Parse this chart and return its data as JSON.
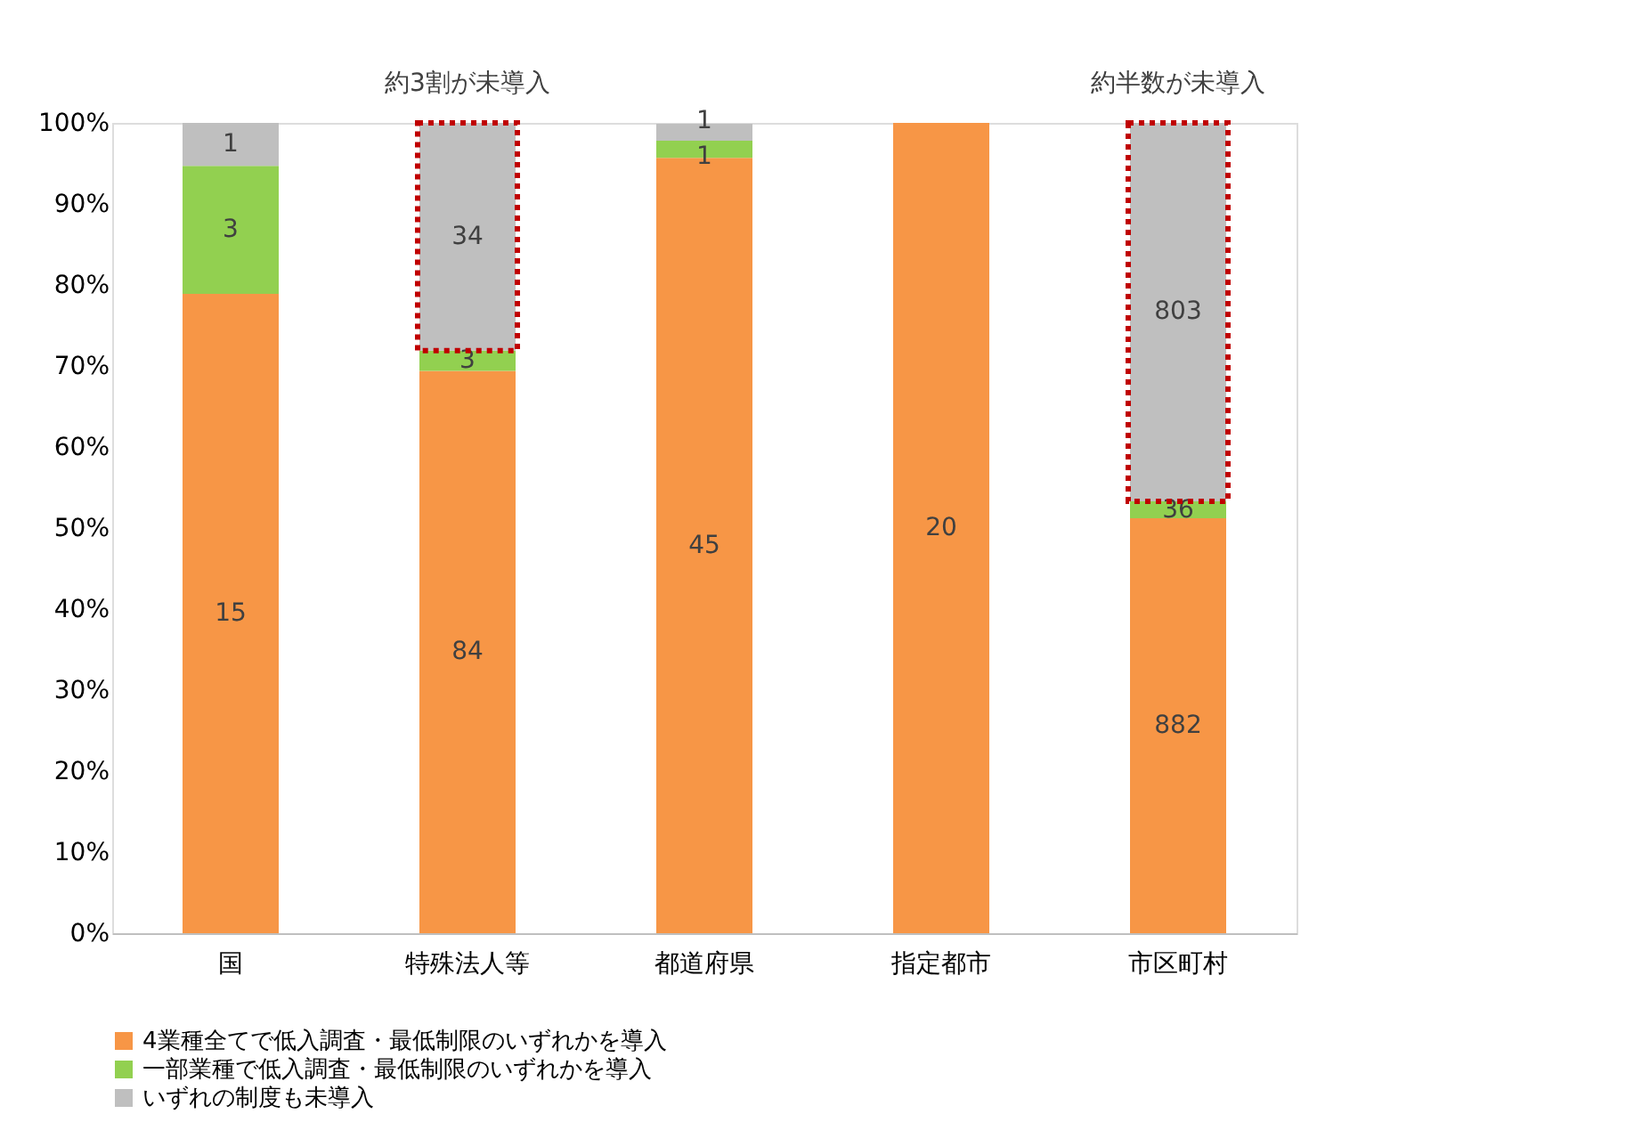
{
  "chart_data": {
    "type": "bar",
    "stacked": true,
    "categories": [
      "国",
      "特殊法人等",
      "都道府県",
      "指定都市",
      "市区町村"
    ],
    "series": [
      {
        "name": "4業種全てで低入調査・最低制限のいずれかを導入",
        "color": "#f79646",
        "values": [
          78.9,
          69.4,
          95.7,
          100,
          51.2
        ]
      },
      {
        "name": "一部業種で低入調査・最低制限のいずれかを導入",
        "color": "#92d050",
        "values": [
          15.8,
          2.5,
          2.1,
          0,
          2.1
        ]
      },
      {
        "name": "いずれの制度も未導入",
        "color": "#bfbfbf",
        "values": [
          5.3,
          28.1,
          2.1,
          0,
          46.7
        ]
      }
    ],
    "ylim": [
      0,
      100
    ],
    "yticks": [
      {
        "value": 0,
        "label": "0%"
      },
      {
        "value": 10,
        "label": "10%"
      },
      {
        "value": 20,
        "label": "20%"
      },
      {
        "value": 30,
        "label": "30%"
      },
      {
        "value": 40,
        "label": "40%"
      },
      {
        "value": 50,
        "label": "50%"
      },
      {
        "value": 60,
        "label": "60%"
      },
      {
        "value": 70,
        "label": "70%"
      },
      {
        "value": 80,
        "label": "80%"
      },
      {
        "value": 90,
        "label": "90%"
      },
      {
        "value": 100,
        "label": "100%"
      }
    ],
    "grid": false,
    "legend": "bottom",
    "annotations": [
      {
        "text": "約3割が未導入",
        "x": "特殊法人等",
        "y": 100
      },
      {
        "text": "約半数が未導入",
        "x": "市区町村",
        "y": 100
      },
      "15",
      "3",
      "1",
      "84",
      "3",
      "34",
      "45",
      "1",
      "1",
      "20",
      "882",
      "36",
      "803"
    ]
  }
}
